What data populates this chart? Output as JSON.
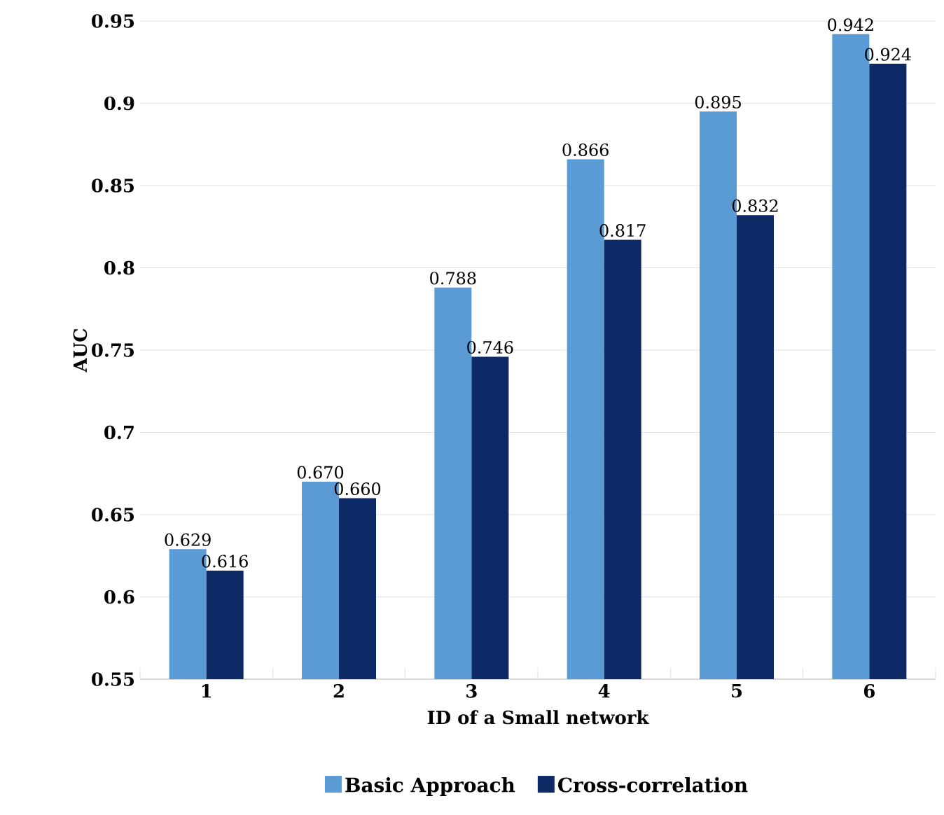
{
  "chart_data": {
    "type": "bar",
    "xlabel": "ID of a Small network",
    "ylabel": "AUC",
    "categories": [
      "1",
      "2",
      "3",
      "4",
      "5",
      "6"
    ],
    "series": [
      {
        "name": "Basic Approach",
        "color": "#5b9bd5",
        "values": [
          0.629,
          0.67,
          0.788,
          0.866,
          0.895,
          0.942
        ],
        "value_labels": [
          "0.629",
          "0.670",
          "0.788",
          "0.866",
          "0.895",
          "0.942"
        ]
      },
      {
        "name": "Cross-correlation",
        "color": "#0d2a66",
        "values": [
          0.616,
          0.66,
          0.746,
          0.817,
          0.832,
          0.924
        ],
        "value_labels": [
          "0.616",
          "0.660",
          "0.746",
          "0.817",
          "0.832",
          "0.924"
        ]
      }
    ],
    "ylim": [
      0.55,
      0.95
    ],
    "yticks": [
      0.55,
      0.6,
      0.65,
      0.7,
      0.75,
      0.8,
      0.85,
      0.9,
      0.95
    ],
    "grid": "y",
    "legend": "bottom"
  }
}
